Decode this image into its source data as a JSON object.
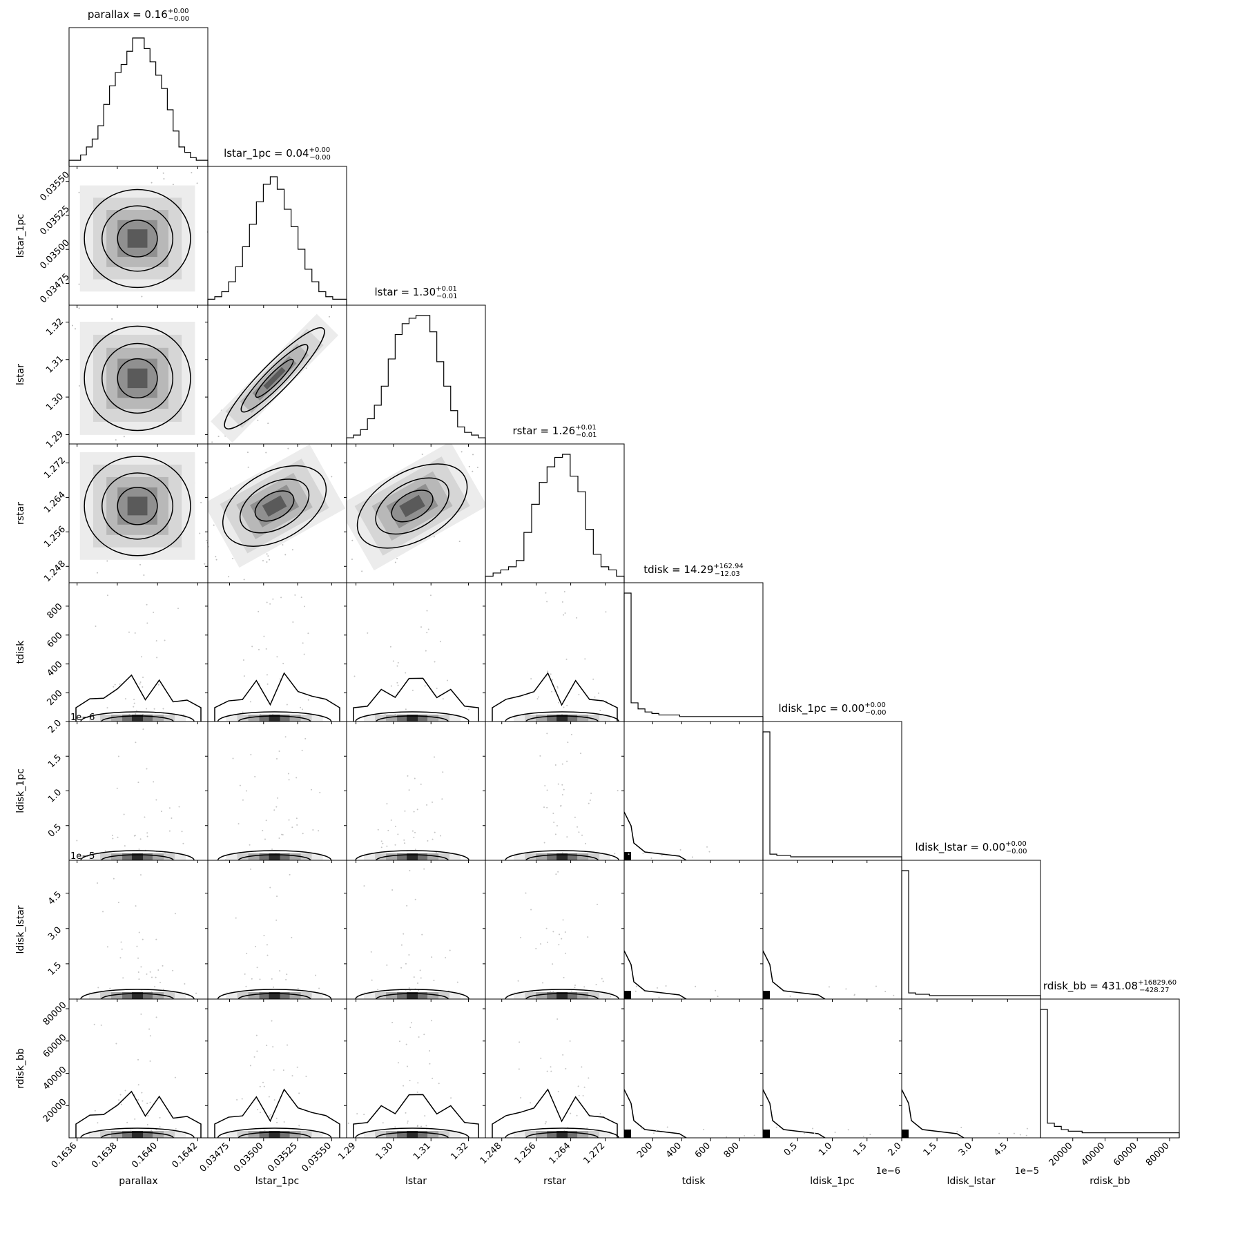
{
  "chart_data": {
    "type": "corner",
    "parameters": [
      {
        "name": "parallax",
        "xlabel": "parallax",
        "ylabel": "",
        "range": [
          0.16356,
          0.16425
        ],
        "ticks": [
          0.1636,
          0.1638,
          0.164,
          0.1642
        ],
        "tick_labels": [
          "0.1636",
          "0.1638",
          "0.1640",
          "0.1642"
        ],
        "offset_label": "",
        "median": 0.1639,
        "sigma": 0.00011,
        "title_prefix": "parallax = 0.16",
        "title_sup": "+0.00",
        "title_sub": "−0.00",
        "hist": [
          1,
          1,
          3,
          6,
          9,
          14,
          22,
          29,
          34,
          37,
          42,
          47,
          47,
          43,
          38,
          33,
          28,
          20,
          12,
          6,
          4,
          2,
          1,
          1
        ]
      },
      {
        "name": "lstar_1pc",
        "xlabel": "lstar_1pc",
        "ylabel": "lstar_1pc",
        "range": [
          0.03459,
          0.03561
        ],
        "ticks": [
          0.03475,
          0.035,
          0.03525,
          0.0355
        ],
        "tick_labels": [
          "0.03475",
          "0.03500",
          "0.03525",
          "0.03550"
        ],
        "offset_label": "",
        "median": 0.03508,
        "sigma": 0.00015,
        "title_prefix": "lstar_1pc = 0.04",
        "title_sup": "+0.00",
        "title_sub": "−0.00",
        "hist": [
          1,
          2,
          4,
          8,
          14,
          22,
          31,
          40,
          47,
          50,
          45,
          37,
          30,
          21,
          13,
          8,
          4,
          2,
          1,
          1
        ]
      },
      {
        "name": "lstar",
        "xlabel": "lstar",
        "ylabel": "lstar",
        "range": [
          1.2875,
          1.3245
        ],
        "ticks": [
          1.29,
          1.3,
          1.31,
          1.32
        ],
        "tick_labels": [
          "1.29",
          "1.30",
          "1.31",
          "1.32"
        ],
        "offset_label": "",
        "median": 1.305,
        "sigma": 0.0058,
        "title_prefix": "lstar = 1.30",
        "title_sup": "+0.01",
        "title_sub": "−0.01",
        "hist": [
          1,
          2,
          4,
          8,
          13,
          20,
          30,
          39,
          43,
          45,
          46,
          46,
          40,
          29,
          20,
          11,
          5,
          3,
          2,
          1
        ]
      },
      {
        "name": "rstar",
        "xlabel": "rstar",
        "ylabel": "rstar",
        "range": [
          1.2442,
          1.2764
        ],
        "ticks": [
          1.248,
          1.256,
          1.264,
          1.272
        ],
        "tick_labels": [
          "1.248",
          "1.256",
          "1.264",
          "1.272"
        ],
        "offset_label": "",
        "median": 1.262,
        "sigma": 0.0048,
        "title_prefix": "rstar = 1.26",
        "title_sup": "+0.01",
        "title_sub": "−0.01",
        "hist": [
          1,
          2,
          3,
          4,
          6,
          15,
          24,
          31,
          36,
          39,
          40,
          33,
          28,
          16,
          8,
          4,
          3,
          1
        ]
      },
      {
        "name": "tdisk",
        "xlabel": "tdisk",
        "ylabel": "tdisk",
        "range": [
          2,
          962
        ],
        "ticks": [
          200,
          400,
          600,
          800
        ],
        "tick_labels": [
          "200",
          "400",
          "600",
          "800"
        ],
        "offset_label": "",
        "median": 14.29,
        "sigma": 0,
        "title_prefix": "tdisk = 14.29",
        "title_sup": "+162.94",
        "title_sub": "−12.03",
        "hist": [
          82,
          10,
          6,
          4,
          3,
          2,
          2,
          2,
          1,
          1,
          1,
          1,
          1,
          1,
          1,
          1,
          1,
          1,
          1,
          1
        ]
      },
      {
        "name": "ldisk_1pc",
        "xlabel": "ldisk_1pc",
        "ylabel": "ldisk_1pc",
        "range": [
          0,
          2e-06
        ],
        "ticks": [
          5e-07,
          1e-06,
          1.5e-06,
          2e-06
        ],
        "tick_labels": [
          "0.5",
          "1.0",
          "1.5",
          "2.0"
        ],
        "offset_label": "1e−6",
        "median": 0,
        "sigma": 0,
        "title_prefix": "ldisk_1pc = 0.00",
        "title_sup": "+0.00",
        "title_sub": "−0.00",
        "hist": [
          93,
          2,
          1,
          1,
          0,
          0,
          0,
          0,
          0,
          0,
          0,
          0,
          0,
          0,
          0,
          0,
          0,
          0,
          0,
          0
        ]
      },
      {
        "name": "ldisk_lstar",
        "xlabel": "ldisk_lstar",
        "ylabel": "ldisk_lstar",
        "range": [
          0,
          5.9e-05
        ],
        "ticks": [
          1.5e-05,
          3e-05,
          4.5e-05
        ],
        "tick_labels": [
          "1.5",
          "3.0",
          "4.5"
        ],
        "offset_label": "1e−5",
        "median": 0,
        "sigma": 0,
        "title_prefix": "ldisk_lstar = 0.00",
        "title_sup": "+0.00",
        "title_sub": "−0.00",
        "hist": [
          93,
          2,
          1,
          1,
          0,
          0,
          0,
          0,
          0,
          0,
          0,
          0,
          0,
          0,
          0,
          0,
          0,
          0,
          0,
          0
        ]
      },
      {
        "name": "rdisk_bb",
        "xlabel": "rdisk_bb",
        "ylabel": "rdisk_bb",
        "range": [
          3,
          86000
        ],
        "ticks": [
          20000,
          40000,
          60000,
          80000
        ],
        "tick_labels": [
          "20000",
          "40000",
          "60000",
          "80000"
        ],
        "offset_label": "",
        "median": 431.08,
        "sigma": 0,
        "title_prefix": "rdisk_bb = 431.08",
        "title_sup": "+16829.60",
        "title_sub": "−428.27",
        "hist": [
          78,
          7,
          5,
          3,
          2,
          2,
          1,
          1,
          1,
          1,
          1,
          1,
          1,
          1,
          1,
          1,
          1,
          1,
          1,
          1
        ]
      }
    ]
  }
}
